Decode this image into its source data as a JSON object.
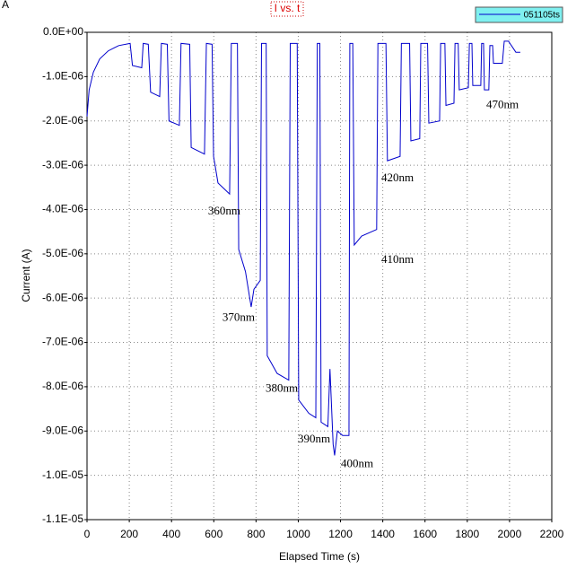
{
  "chart_data": {
    "type": "line",
    "corner_label": "A",
    "title": "I vs. t",
    "xlabel": "Elapsed Time (s)",
    "ylabel": "Current (A)",
    "grid": true,
    "legend": "top-right",
    "xlim": [
      0,
      2200
    ],
    "xticks": [
      0,
      200,
      400,
      600,
      800,
      1000,
      1200,
      1400,
      1600,
      1800,
      2000,
      2200
    ],
    "ylim": [
      -1.1e-05,
      0
    ],
    "yticks": [
      {
        "value": 0,
        "label": "0.0E+00"
      },
      {
        "value": -1e-06,
        "label": "-1.0E-06"
      },
      {
        "value": -2e-06,
        "label": "-2.0E-06"
      },
      {
        "value": -3e-06,
        "label": "-3.0E-06"
      },
      {
        "value": -4e-06,
        "label": "-4.0E-06"
      },
      {
        "value": -5e-06,
        "label": "-5.0E-06"
      },
      {
        "value": -6e-06,
        "label": "-6.0E-06"
      },
      {
        "value": -7e-06,
        "label": "-7.0E-06"
      },
      {
        "value": -8e-06,
        "label": "-8.0E-06"
      },
      {
        "value": -9e-06,
        "label": "-9.0E-06"
      },
      {
        "value": -1e-05,
        "label": "-1.0E-05"
      },
      {
        "value": -1.1e-05,
        "label": "-1.1E-05"
      }
    ],
    "x": [
      0,
      10,
      30,
      60,
      100,
      150,
      204,
      215,
      259,
      266,
      290,
      301,
      344,
      352,
      380,
      388,
      437,
      445,
      486,
      493,
      556,
      565,
      592,
      599,
      620,
      675,
      683,
      712,
      718,
      750,
      777,
      790,
      820,
      826,
      848,
      853,
      900,
      955,
      962,
      995,
      1002,
      1050,
      1083,
      1090,
      1102,
      1108,
      1140,
      1150,
      1165,
      1172,
      1185,
      1210,
      1240,
      1244,
      1258,
      1265,
      1300,
      1371,
      1377,
      1415,
      1422,
      1482,
      1488,
      1527,
      1533,
      1575,
      1580,
      1612,
      1618,
      1669,
      1674,
      1694,
      1699,
      1737,
      1742,
      1757,
      1762,
      1805,
      1810,
      1822,
      1826,
      1864,
      1868,
      1877,
      1881,
      1902,
      1907,
      1920,
      1924,
      1966,
      1975,
      1995,
      2030,
      2051
    ],
    "series": [
      {
        "name": "051105ts",
        "color": "#0000cc",
        "values": [
          -1.9e-06,
          -1.3e-06,
          -9e-07,
          -6e-07,
          -4.2e-07,
          -3e-07,
          -2.5e-07,
          -7.5e-07,
          -8e-07,
          -2.5e-07,
          -2.7e-07,
          -1.35e-06,
          -1.45e-06,
          -2.5e-07,
          -2.7e-07,
          -2e-06,
          -2.1e-06,
          -2.5e-07,
          -2.7e-07,
          -2.6e-06,
          -2.75e-06,
          -2.5e-07,
          -2.7e-07,
          -2.8e-06,
          -3.4e-06,
          -3.65e-06,
          -2.5e-07,
          -2.5e-07,
          -4.9e-06,
          -5.4e-06,
          -6.2e-06,
          -5.8e-06,
          -5.6e-06,
          -2.5e-07,
          -2.5e-07,
          -7.3e-06,
          -7.7e-06,
          -7.85e-06,
          -2.5e-07,
          -2.5e-07,
          -8.3e-06,
          -8.6e-06,
          -8.7e-06,
          -2.5e-07,
          -2.5e-07,
          -8.8e-06,
          -8.9e-06,
          -7.6e-06,
          -9.3e-06,
          -9.55e-06,
          -9e-06,
          -9.1e-06,
          -9.1e-06,
          -2.5e-07,
          -2.5e-07,
          -4.8e-06,
          -4.6e-06,
          -4.45e-06,
          -2.5e-07,
          -2.5e-07,
          -2.9e-06,
          -2.8e-06,
          -2.5e-07,
          -2.5e-07,
          -2.45e-06,
          -2.4e-06,
          -2.5e-07,
          -2.5e-07,
          -2.05e-06,
          -2e-06,
          -2.5e-07,
          -2.5e-07,
          -1.65e-06,
          -1.6e-06,
          -2.5e-07,
          -2.5e-07,
          -1.3e-06,
          -1.25e-06,
          -2.5e-07,
          -2.5e-07,
          -1.2e-06,
          -1.2e-06,
          -2.5e-07,
          -2.5e-07,
          -1.3e-06,
          -1.3e-06,
          -3e-07,
          -3e-07,
          -7e-07,
          -7e-07,
          -2e-07,
          -2e-07,
          -4.5e-07,
          -4.5e-07
        ]
      }
    ],
    "annotations": [
      {
        "text": "360nm",
        "x": 573,
        "y": -4.05e-06
      },
      {
        "text": "370nm",
        "x": 641,
        "y": -6.45e-06
      },
      {
        "text": "380nm",
        "x": 845,
        "y": -8.05e-06
      },
      {
        "text": "390nm",
        "x": 998,
        "y": -9.2e-06
      },
      {
        "text": "400nm",
        "x": 1202,
        "y": -9.75e-06
      },
      {
        "text": "410nm",
        "x": 1393,
        "y": -5.15e-06
      },
      {
        "text": "420nm",
        "x": 1393,
        "y": -3.3e-06
      },
      {
        "text": "470nm",
        "x": 1890,
        "y": -1.65e-06
      }
    ]
  }
}
